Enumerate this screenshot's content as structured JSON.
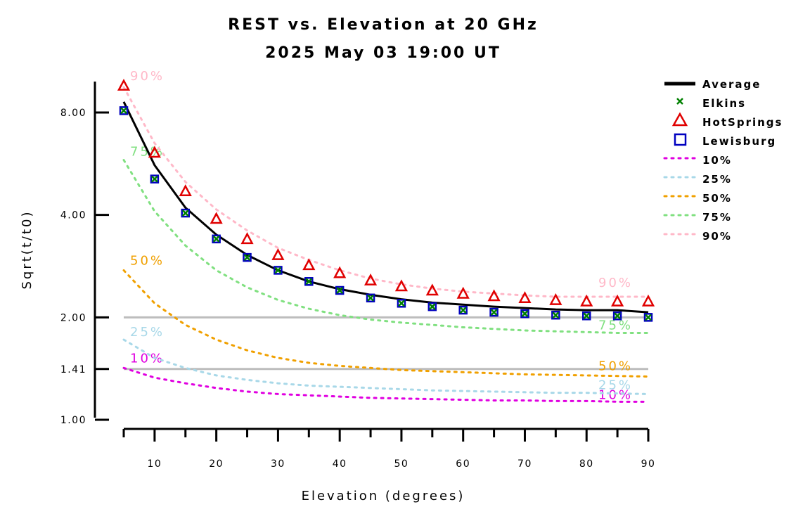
{
  "chart_data": {
    "type": "line",
    "title": "REST vs. Elevation at 20 GHz",
    "subtitle": "2025 May 03 19:00 UT",
    "xlabel": "Elevation (degrees)",
    "ylabel": "Sqrt(t/t0)",
    "xlim": [
      4,
      92
    ],
    "ylim": [
      1.0,
      10.0
    ],
    "y_scale": "log",
    "x_ticks": [
      10,
      20,
      30,
      40,
      50,
      60,
      70,
      80,
      90
    ],
    "x_tick_labels": [
      "10",
      "20",
      "30",
      "40",
      "50",
      "60",
      "70",
      "80",
      "90"
    ],
    "y_ticks": [
      1.0,
      1.41,
      2.0,
      4.0,
      8.0
    ],
    "y_tick_labels": [
      "1.00",
      "1.41",
      "2.00",
      "4.00",
      "8.00"
    ],
    "reference_lines": [
      1.41,
      2.0
    ],
    "legend_position": "right",
    "x": [
      5,
      10,
      15,
      20,
      25,
      30,
      35,
      40,
      45,
      50,
      55,
      60,
      65,
      70,
      75,
      80,
      85,
      90
    ],
    "series": [
      {
        "name": "Average",
        "style": "line",
        "color": "#000000",
        "values": [
          8.6,
          5.6,
          4.2,
          3.5,
          3.05,
          2.75,
          2.55,
          2.42,
          2.33,
          2.26,
          2.21,
          2.18,
          2.15,
          2.13,
          2.11,
          2.1,
          2.1,
          2.07
        ]
      },
      {
        "name": "Elkins",
        "style": "marker",
        "marker": "x",
        "color": "#008000",
        "values": [
          8.1,
          5.1,
          4.05,
          3.4,
          3.0,
          2.75,
          2.55,
          2.4,
          2.28,
          2.2,
          2.15,
          2.1,
          2.07,
          2.05,
          2.03,
          2.02,
          2.02,
          2.0
        ]
      },
      {
        "name": "HotSprings",
        "style": "marker",
        "marker": "triangle",
        "color": "#e00000",
        "values": [
          9.6,
          6.1,
          4.7,
          3.9,
          3.4,
          3.05,
          2.85,
          2.7,
          2.57,
          2.47,
          2.4,
          2.35,
          2.31,
          2.28,
          2.25,
          2.23,
          2.23,
          2.23
        ]
      },
      {
        "name": "Lewisburg",
        "style": "marker",
        "marker": "square",
        "color": "#0000c0",
        "values": [
          8.1,
          5.1,
          4.05,
          3.4,
          3.0,
          2.75,
          2.55,
          2.4,
          2.28,
          2.2,
          2.15,
          2.1,
          2.07,
          2.05,
          2.03,
          2.02,
          2.02,
          2.0
        ]
      },
      {
        "name": "10%",
        "style": "dotted",
        "color": "#e000e0",
        "label": "10%",
        "values": [
          1.42,
          1.33,
          1.28,
          1.24,
          1.21,
          1.19,
          1.18,
          1.17,
          1.16,
          1.155,
          1.15,
          1.145,
          1.14,
          1.14,
          1.135,
          1.135,
          1.13,
          1.13
        ]
      },
      {
        "name": "25%",
        "style": "dotted",
        "color": "#a8d8e8",
        "label": "25%",
        "values": [
          1.72,
          1.52,
          1.42,
          1.35,
          1.31,
          1.28,
          1.26,
          1.25,
          1.24,
          1.23,
          1.22,
          1.215,
          1.21,
          1.205,
          1.2,
          1.2,
          1.195,
          1.19
        ]
      },
      {
        "name": "50%",
        "style": "dotted",
        "color": "#f0a000",
        "label": "50%",
        "values": [
          2.75,
          2.2,
          1.9,
          1.72,
          1.6,
          1.52,
          1.47,
          1.44,
          1.42,
          1.4,
          1.39,
          1.38,
          1.37,
          1.36,
          1.355,
          1.35,
          1.345,
          1.34
        ]
      },
      {
        "name": "75%",
        "style": "dotted",
        "color": "#80e080",
        "label": "75%",
        "values": [
          5.8,
          4.1,
          3.25,
          2.75,
          2.45,
          2.25,
          2.12,
          2.03,
          1.97,
          1.93,
          1.9,
          1.87,
          1.85,
          1.83,
          1.82,
          1.81,
          1.8,
          1.8
        ]
      },
      {
        "name": "90%",
        "style": "dotted",
        "color": "#ffb8c8",
        "label": "90%",
        "values": [
          9.5,
          6.5,
          5.0,
          4.15,
          3.6,
          3.2,
          2.95,
          2.75,
          2.6,
          2.5,
          2.43,
          2.38,
          2.35,
          2.32,
          2.3,
          2.3,
          2.3,
          2.3
        ]
      }
    ]
  }
}
